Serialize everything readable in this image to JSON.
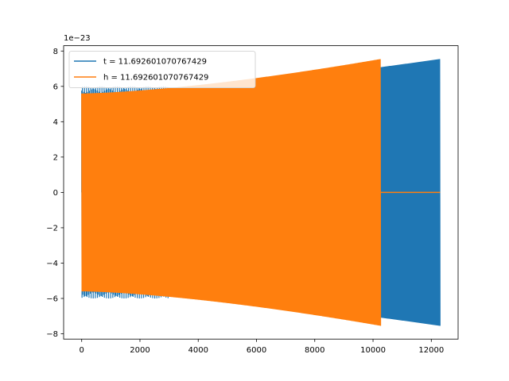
{
  "chart_data": {
    "type": "line",
    "title": "",
    "xlabel": "",
    "ylabel": "",
    "y_offset_label": "1e−23",
    "xlim": [
      -620,
      12920
    ],
    "ylim": [
      -8.3,
      8.3
    ],
    "x_ticks": [
      0,
      2000,
      4000,
      6000,
      8000,
      10000,
      12000
    ],
    "x_tick_labels": [
      "0",
      "2000",
      "4000",
      "6000",
      "8000",
      "10000",
      "12000"
    ],
    "y_ticks": [
      -8,
      -6,
      -4,
      -2,
      0,
      2,
      4,
      6,
      8
    ],
    "y_tick_labels": [
      "−8",
      "−6",
      "−4",
      "−2",
      "0",
      "2",
      "4",
      "6",
      "8"
    ],
    "grid": false,
    "legend_position": "top-left",
    "series": [
      {
        "name": "t = 11.692601070767429",
        "color": "#1f77b4",
        "x_end": 12300,
        "amplitude_start": 5.6,
        "amplitude_end": 7.55,
        "peak_start": 6.0
      },
      {
        "name": "h = 11.692601070767429",
        "color": "#ff7f0e",
        "x_end": 10270,
        "amplitude_start": 5.6,
        "amplitude_end": 7.55,
        "flat_after_end": 0,
        "flat_until": 12300
      }
    ]
  }
}
